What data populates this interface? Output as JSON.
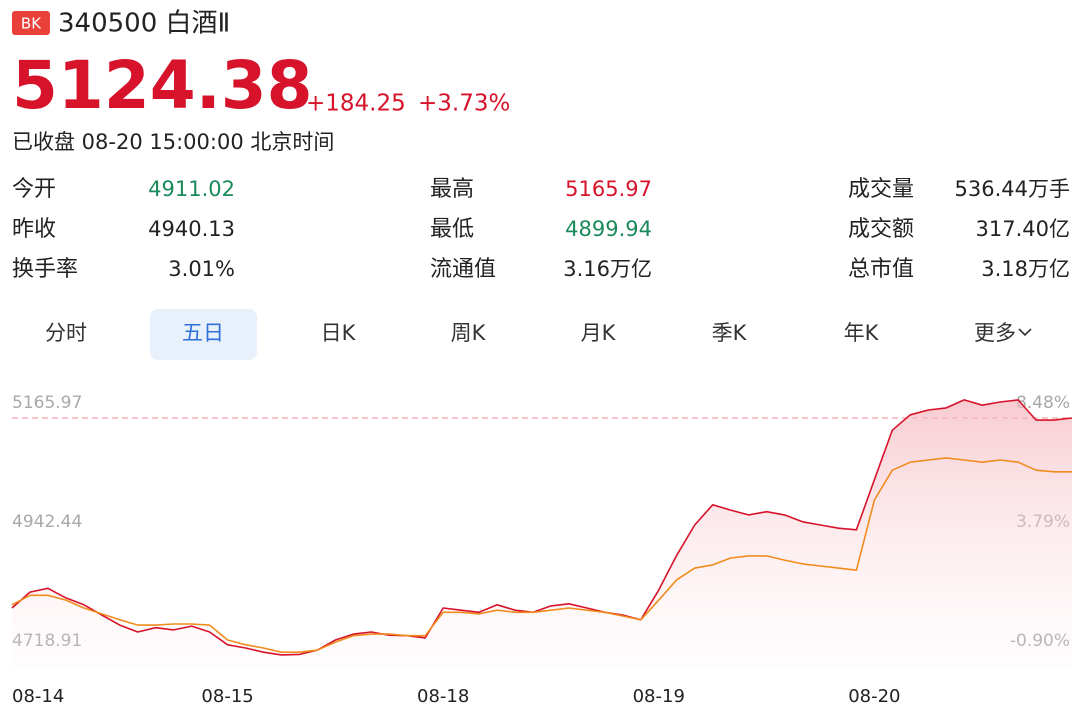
{
  "header": {
    "badge": "BK",
    "title": "340500 白酒Ⅱ",
    "price": "5124.38",
    "change": "+184.25",
    "change_percent": "+3.73%",
    "status": "已收盘 08-20 15:00:00 北京时间"
  },
  "stats": [
    [
      {
        "label": "今开",
        "value": "4911.02",
        "tone": "down"
      },
      {
        "label": "最高",
        "value": "5165.97",
        "tone": "up"
      },
      {
        "label": "成交量",
        "value": "536.44万手",
        "tone": "flat"
      }
    ],
    [
      {
        "label": "昨收",
        "value": "4940.13",
        "tone": "flat"
      },
      {
        "label": "最低",
        "value": "4899.94",
        "tone": "down"
      },
      {
        "label": "成交额",
        "value": "317.40亿",
        "tone": "flat"
      }
    ],
    [
      {
        "label": "换手率",
        "value": "3.01%",
        "tone": "flat"
      },
      {
        "label": "流通值",
        "value": "3.16万亿",
        "tone": "flat"
      },
      {
        "label": "总市值",
        "value": "3.18万亿",
        "tone": "flat"
      }
    ]
  ],
  "tabs": [
    "分时",
    "五日",
    "日K",
    "周K",
    "月K",
    "季K",
    "年K",
    "更多"
  ],
  "active_tab": 1,
  "chart_data": {
    "type": "line",
    "categories": [
      "08-14",
      null,
      null,
      null,
      null,
      null,
      null,
      null,
      null,
      null,
      null,
      null,
      "08-15",
      null,
      null,
      null,
      null,
      null,
      null,
      null,
      null,
      null,
      null,
      null,
      "08-18",
      null,
      null,
      null,
      null,
      null,
      null,
      null,
      null,
      null,
      null,
      null,
      "08-19",
      null,
      null,
      null,
      null,
      null,
      null,
      null,
      null,
      null,
      null,
      null,
      "08-20",
      null,
      null,
      null,
      null,
      null,
      null,
      null,
      null,
      null,
      null,
      null
    ],
    "series": [
      {
        "color": "#d6132a",
        "values": [
          4809,
          4839,
          4846,
          4828,
          4815,
          4796,
          4777,
          4764,
          4772,
          4768,
          4775,
          4764,
          4740,
          4734,
          4726,
          4721,
          4722,
          4730,
          4749,
          4760,
          4764,
          4758,
          4757,
          4753,
          4809,
          4805,
          4801,
          4815,
          4805,
          4801,
          4813,
          4817,
          4809,
          4801,
          4796,
          4787,
          4843,
          4908,
          4965,
          5003,
          4993,
          4984,
          4990,
          4984,
          4971,
          4965,
          4959,
          4956,
          5050,
          5143,
          5172,
          5181,
          5185,
          5200,
          5190,
          5196,
          5200,
          5162,
          5162,
          5166
        ]
      },
      {
        "color": "#f08c1e",
        "values": [
          4815,
          4833,
          4833,
          4824,
          4809,
          4798,
          4787,
          4777,
          4777,
          4779,
          4779,
          4777,
          4749,
          4740,
          4734,
          4726,
          4726,
          4730,
          4745,
          4757,
          4760,
          4760,
          4757,
          4757,
          4801,
          4801,
          4798,
          4805,
          4801,
          4801,
          4805,
          4809,
          4805,
          4801,
          4794,
          4787,
          4824,
          4862,
          4884,
          4890,
          4903,
          4907,
          4907,
          4899,
          4892,
          4888,
          4884,
          4880,
          5012,
          5068,
          5083,
          5087,
          5091,
          5087,
          5083,
          5087,
          5083,
          5068,
          5065,
          5065
        ]
      }
    ],
    "ylim": [
      4718.91,
      5165.97
    ],
    "yticks": [
      5165.97,
      4942.44,
      4718.91
    ],
    "y2lim": [
      -0.9,
      8.48
    ],
    "y2ticks": [
      {
        "value": 8.48,
        "label": "8.48%"
      },
      {
        "value": 3.79,
        "label": "3.79%"
      },
      {
        "value": -0.9,
        "label": "-0.90%"
      }
    ]
  }
}
